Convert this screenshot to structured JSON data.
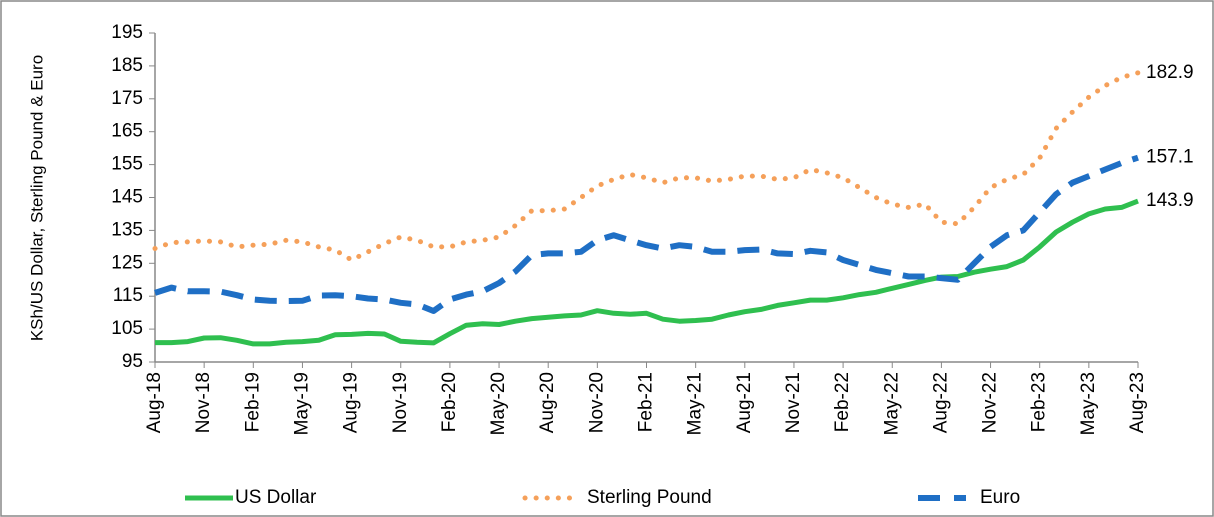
{
  "chart_data": {
    "type": "line",
    "ylabel": "KSh/US Dollar, Sterling Pound & Euro",
    "categories": [
      "Aug-18",
      null,
      null,
      "Nov-18",
      null,
      null,
      "Feb-19",
      null,
      null,
      "May-19",
      null,
      null,
      "Aug-19",
      null,
      null,
      "Nov-19",
      null,
      null,
      "Feb-20",
      null,
      null,
      "May-20",
      null,
      null,
      "Aug-20",
      null,
      null,
      "Nov-20",
      null,
      null,
      "Feb-21",
      null,
      null,
      "May-21",
      null,
      null,
      "Aug-21",
      null,
      null,
      "Nov-21",
      null,
      null,
      "Feb-22",
      null,
      null,
      "May-22",
      null,
      null,
      "Aug-22",
      null,
      null,
      "Nov-22",
      null,
      null,
      "Feb-23",
      null,
      null,
      "May-23",
      null,
      null,
      "Aug-23"
    ],
    "series": [
      {
        "name": "US Dollar",
        "color": "#2fbf4f",
        "style": "solid",
        "values": [
          100.9,
          100.9,
          101.2,
          102.3,
          102.4,
          101.6,
          100.5,
          100.5,
          101.0,
          101.2,
          101.6,
          103.3,
          103.4,
          103.7,
          103.5,
          101.3,
          101.0,
          100.8,
          103.6,
          106.2,
          106.6,
          106.4,
          107.4,
          108.2,
          108.6,
          109.0,
          109.3,
          110.6,
          109.8,
          109.5,
          109.8,
          108.0,
          107.4,
          107.6,
          108.0,
          109.3,
          110.3,
          111.0,
          112.2,
          113.0,
          113.8,
          113.8,
          114.5,
          115.5,
          116.2,
          117.4,
          118.6,
          119.8,
          120.8,
          121.0,
          122.3,
          123.2,
          124.0,
          126.0,
          130.0,
          134.5,
          137.5,
          140.0,
          141.5,
          142.0,
          143.9
        ]
      },
      {
        "name": "Sterling Pound",
        "color": "#f5a05a",
        "style": "dotted",
        "values": [
          129.5,
          131.3,
          131.5,
          131.8,
          131.5,
          130.0,
          130.5,
          130.8,
          132.0,
          131.5,
          130.0,
          129.0,
          126.0,
          128.5,
          131.0,
          133.0,
          132.0,
          130.0,
          130.0,
          131.5,
          132.0,
          133.0,
          136.5,
          141.0,
          141.0,
          141.5,
          145.0,
          148.5,
          150.5,
          152.0,
          151.0,
          149.5,
          151.0,
          151.0,
          150.0,
          150.5,
          151.5,
          151.5,
          150.5,
          151.0,
          153.5,
          152.5,
          151.0,
          148.0,
          145.0,
          143.0,
          142.0,
          143.0,
          137.5,
          137.0,
          142.0,
          148.0,
          150.5,
          152.0,
          157.0,
          166.0,
          171.0,
          175.5,
          179.0,
          181.5,
          182.9
        ]
      },
      {
        "name": "Euro",
        "color": "#1f6fc5",
        "style": "dashed",
        "values": [
          116.0,
          117.6,
          116.5,
          116.5,
          116.4,
          115.3,
          114.0,
          113.6,
          113.5,
          113.6,
          115.2,
          115.3,
          115.0,
          114.3,
          114.0,
          113.0,
          112.5,
          110.5,
          114.0,
          115.5,
          116.5,
          119.0,
          122.5,
          127.5,
          128.0,
          128.0,
          128.5,
          132.0,
          133.5,
          132.0,
          130.5,
          129.5,
          130.5,
          130.0,
          128.5,
          128.5,
          129.0,
          129.2,
          128.0,
          127.8,
          128.8,
          128.3,
          126.0,
          124.5,
          123.0,
          122.0,
          121.0,
          121.0,
          120.5,
          120.0,
          125.0,
          130.0,
          133.5,
          135.0,
          140.5,
          146.0,
          149.5,
          151.5,
          153.5,
          155.5,
          157.1
        ]
      }
    ],
    "end_labels": true,
    "ylim": [
      95,
      195
    ],
    "yticks": [
      95,
      105,
      115,
      125,
      135,
      145,
      155,
      165,
      175,
      185,
      195
    ],
    "grid": false,
    "legend": "bottom"
  }
}
